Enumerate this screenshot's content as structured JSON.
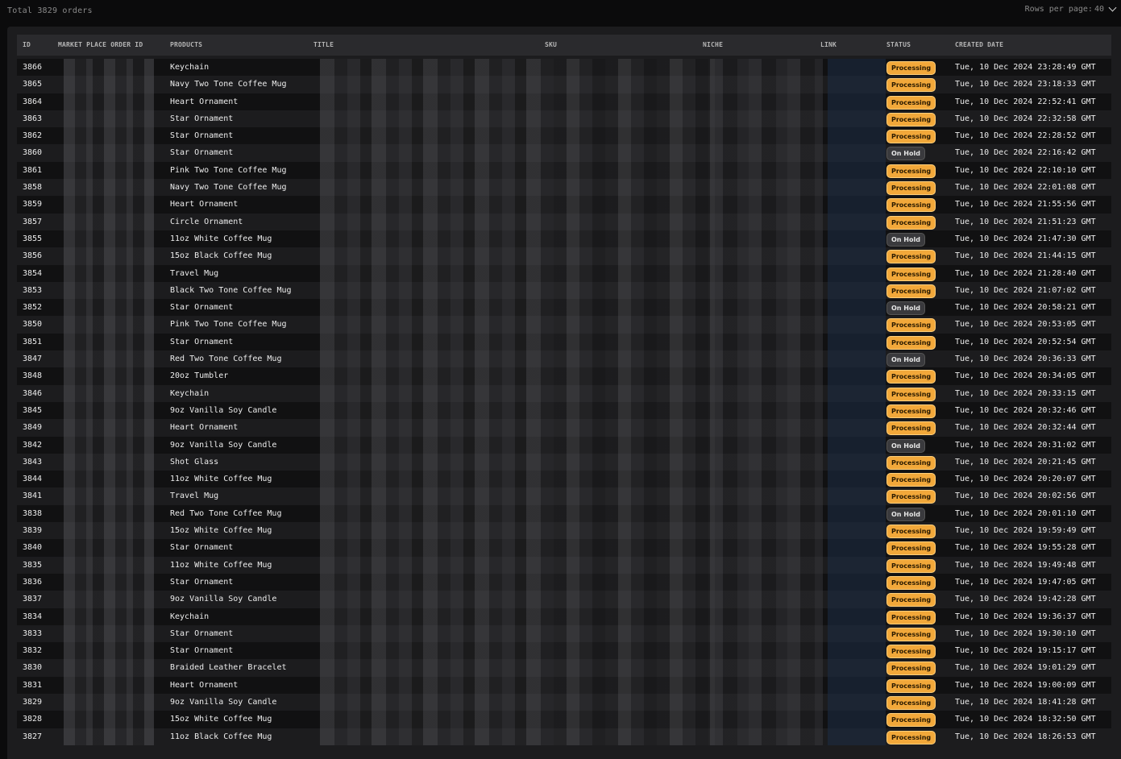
{
  "header": {
    "total_label": "Total 3829 orders",
    "rows_per_page_label": "Rows per page:",
    "rows_per_page_value": "40"
  },
  "columns": {
    "id": "ID",
    "marketplace_order_id": "MARKET PLACE ORDER ID",
    "products": "PRODUCTS",
    "title": "TITLE",
    "sku": "SKU",
    "niche": "NICHE",
    "link": "LINK",
    "status": "STATUS",
    "created_date": "CREATED DATE"
  },
  "status_colors": {
    "processing": "#f2a83a",
    "on_hold": "#3a3a3d"
  },
  "rows": [
    {
      "id": "3866",
      "product": "Keychain",
      "status": "Processing",
      "created": "Tue, 10 Dec 2024 23:28:49 GMT"
    },
    {
      "id": "3865",
      "product": "Navy Two Tone Coffee Mug",
      "status": "Processing",
      "created": "Tue, 10 Dec 2024 23:18:33 GMT"
    },
    {
      "id": "3864",
      "product": "Heart Ornament",
      "status": "Processing",
      "created": "Tue, 10 Dec 2024 22:52:41 GMT"
    },
    {
      "id": "3863",
      "product": "Star Ornament",
      "status": "Processing",
      "created": "Tue, 10 Dec 2024 22:32:58 GMT"
    },
    {
      "id": "3862",
      "product": "Star Ornament",
      "status": "Processing",
      "created": "Tue, 10 Dec 2024 22:28:52 GMT"
    },
    {
      "id": "3860",
      "product": "Star Ornament",
      "status": "On Hold",
      "created": "Tue, 10 Dec 2024 22:16:42 GMT"
    },
    {
      "id": "3861",
      "product": "Pink Two Tone Coffee Mug",
      "status": "Processing",
      "created": "Tue, 10 Dec 2024 22:10:10 GMT"
    },
    {
      "id": "3858",
      "product": "Navy Two Tone Coffee Mug",
      "status": "Processing",
      "created": "Tue, 10 Dec 2024 22:01:08 GMT"
    },
    {
      "id": "3859",
      "product": "Heart Ornament",
      "status": "Processing",
      "created": "Tue, 10 Dec 2024 21:55:56 GMT"
    },
    {
      "id": "3857",
      "product": "Circle Ornament",
      "status": "Processing",
      "created": "Tue, 10 Dec 2024 21:51:23 GMT"
    },
    {
      "id": "3855",
      "product": "11oz White Coffee Mug",
      "status": "On Hold",
      "created": "Tue, 10 Dec 2024 21:47:30 GMT"
    },
    {
      "id": "3856",
      "product": "15oz Black Coffee Mug",
      "status": "Processing",
      "created": "Tue, 10 Dec 2024 21:44:15 GMT"
    },
    {
      "id": "3854",
      "product": "Travel Mug",
      "status": "Processing",
      "created": "Tue, 10 Dec 2024 21:28:40 GMT"
    },
    {
      "id": "3853",
      "product": "Black Two Tone Coffee Mug",
      "status": "Processing",
      "created": "Tue, 10 Dec 2024 21:07:02 GMT"
    },
    {
      "id": "3852",
      "product": "Star Ornament",
      "status": "On Hold",
      "created": "Tue, 10 Dec 2024 20:58:21 GMT"
    },
    {
      "id": "3850",
      "product": "Pink Two Tone Coffee Mug",
      "status": "Processing",
      "created": "Tue, 10 Dec 2024 20:53:05 GMT"
    },
    {
      "id": "3851",
      "product": "Star Ornament",
      "status": "Processing",
      "created": "Tue, 10 Dec 2024 20:52:54 GMT"
    },
    {
      "id": "3847",
      "product": "Red Two Tone Coffee Mug",
      "status": "On Hold",
      "created": "Tue, 10 Dec 2024 20:36:33 GMT"
    },
    {
      "id": "3848",
      "product": "20oz Tumbler",
      "status": "Processing",
      "created": "Tue, 10 Dec 2024 20:34:05 GMT"
    },
    {
      "id": "3846",
      "product": "Keychain",
      "status": "Processing",
      "created": "Tue, 10 Dec 2024 20:33:15 GMT"
    },
    {
      "id": "3845",
      "product": "9oz Vanilla Soy Candle",
      "status": "Processing",
      "created": "Tue, 10 Dec 2024 20:32:46 GMT"
    },
    {
      "id": "3849",
      "product": "Heart Ornament",
      "status": "Processing",
      "created": "Tue, 10 Dec 2024 20:32:44 GMT"
    },
    {
      "id": "3842",
      "product": "9oz Vanilla Soy Candle",
      "status": "On Hold",
      "created": "Tue, 10 Dec 2024 20:31:02 GMT"
    },
    {
      "id": "3843",
      "product": "Shot Glass",
      "status": "Processing",
      "created": "Tue, 10 Dec 2024 20:21:45 GMT"
    },
    {
      "id": "3844",
      "product": "11oz White Coffee Mug",
      "status": "Processing",
      "created": "Tue, 10 Dec 2024 20:20:07 GMT"
    },
    {
      "id": "3841",
      "product": "Travel Mug",
      "status": "Processing",
      "created": "Tue, 10 Dec 2024 20:02:56 GMT"
    },
    {
      "id": "3838",
      "product": "Red Two Tone Coffee Mug",
      "status": "On Hold",
      "created": "Tue, 10 Dec 2024 20:01:10 GMT"
    },
    {
      "id": "3839",
      "product": "15oz White Coffee Mug",
      "status": "Processing",
      "created": "Tue, 10 Dec 2024 19:59:49 GMT"
    },
    {
      "id": "3840",
      "product": "Star Ornament",
      "status": "Processing",
      "created": "Tue, 10 Dec 2024 19:55:28 GMT"
    },
    {
      "id": "3835",
      "product": "11oz White Coffee Mug",
      "status": "Processing",
      "created": "Tue, 10 Dec 2024 19:49:48 GMT"
    },
    {
      "id": "3836",
      "product": "Star Ornament",
      "status": "Processing",
      "created": "Tue, 10 Dec 2024 19:47:05 GMT"
    },
    {
      "id": "3837",
      "product": "9oz Vanilla Soy Candle",
      "status": "Processing",
      "created": "Tue, 10 Dec 2024 19:42:28 GMT"
    },
    {
      "id": "3834",
      "product": "Keychain",
      "status": "Processing",
      "created": "Tue, 10 Dec 2024 19:36:37 GMT"
    },
    {
      "id": "3833",
      "product": "Star Ornament",
      "status": "Processing",
      "created": "Tue, 10 Dec 2024 19:30:10 GMT"
    },
    {
      "id": "3832",
      "product": "Star Ornament",
      "status": "Processing",
      "created": "Tue, 10 Dec 2024 19:15:17 GMT"
    },
    {
      "id": "3830",
      "product": "Braided Leather Bracelet",
      "status": "Processing",
      "created": "Tue, 10 Dec 2024 19:01:29 GMT"
    },
    {
      "id": "3831",
      "product": "Heart Ornament",
      "status": "Processing",
      "created": "Tue, 10 Dec 2024 19:00:09 GMT"
    },
    {
      "id": "3829",
      "product": "9oz Vanilla Soy Candle",
      "status": "Processing",
      "created": "Tue, 10 Dec 2024 18:41:28 GMT"
    },
    {
      "id": "3828",
      "product": "15oz White Coffee Mug",
      "status": "Processing",
      "created": "Tue, 10 Dec 2024 18:32:50 GMT"
    },
    {
      "id": "3827",
      "product": "11oz Black Coffee Mug",
      "status": "Processing",
      "created": "Tue, 10 Dec 2024 18:26:53 GMT"
    }
  ]
}
